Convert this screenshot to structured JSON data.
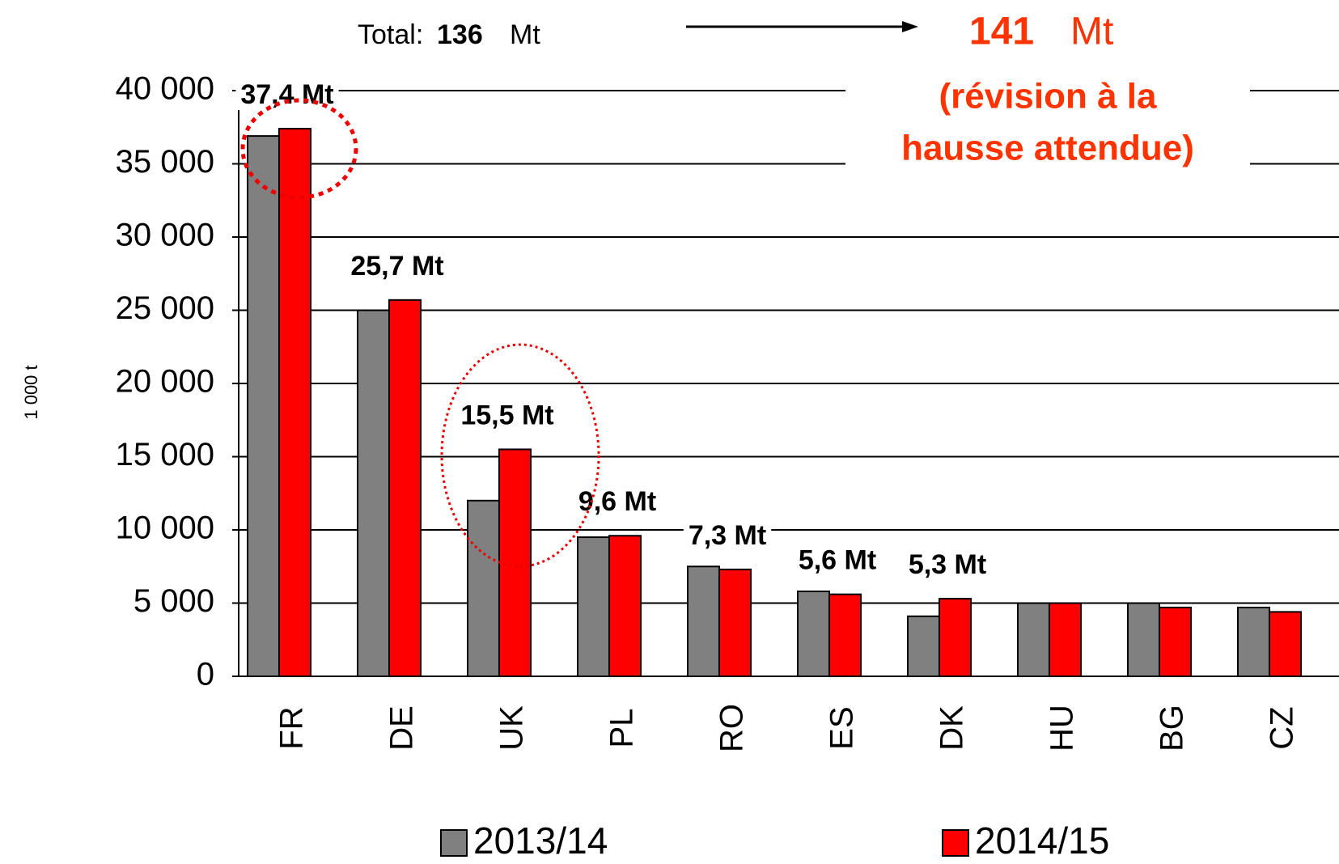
{
  "chart_data": {
    "type": "bar",
    "y_label": "1 000 t",
    "annotations": {
      "total_prefix": "Total:",
      "total_before": "136",
      "unit": "Mt",
      "total_after": "141",
      "note": [
        "(révision à la",
        "hausse attendue)"
      ]
    },
    "categories": [
      "FR",
      "DE",
      "UK",
      "PL",
      "RO",
      "ES",
      "DK",
      "HU",
      "BG",
      "CZ"
    ],
    "series": [
      {
        "name": "2013/14",
        "color": "#808080",
        "values": [
          36900,
          25000,
          12000,
          9500,
          7500,
          5800,
          4100,
          5000,
          5000,
          4700
        ]
      },
      {
        "name": "2014/15",
        "color": "#ff0000",
        "values": [
          37400,
          25700,
          15500,
          9600,
          7300,
          5600,
          5300,
          5000,
          4700,
          4400
        ],
        "value_labels": [
          "37,4 Mt",
          "25,7 Mt",
          "15,5 Mt",
          "9,6 Mt",
          "7,3 Mt",
          "5,6 Mt",
          "5,3 Mt",
          null,
          null,
          null
        ]
      }
    ],
    "ylim": [
      0,
      40000
    ],
    "yticks": [
      0,
      {
        "value": 5000,
        "label": "5 000"
      },
      {
        "value": 10000,
        "label": "10 000"
      },
      {
        "value": 15000,
        "label": "15 000"
      },
      {
        "value": 20000,
        "label": "20 000"
      },
      {
        "value": 25000,
        "label": "25 000"
      },
      {
        "value": 30000,
        "label": "30 000"
      },
      {
        "value": 35000,
        "label": "35 000"
      },
      {
        "value": 40000,
        "label": "40 000"
      }
    ],
    "grid": true
  }
}
